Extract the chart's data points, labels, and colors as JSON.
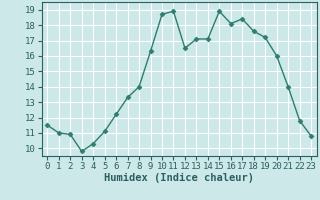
{
  "x": [
    0,
    1,
    2,
    3,
    4,
    5,
    6,
    7,
    8,
    9,
    10,
    11,
    12,
    13,
    14,
    15,
    16,
    17,
    18,
    19,
    20,
    21,
    22,
    23
  ],
  "y": [
    11.5,
    11.0,
    10.9,
    9.8,
    10.3,
    11.1,
    12.2,
    13.3,
    14.0,
    16.3,
    18.7,
    18.9,
    16.5,
    17.1,
    17.1,
    18.9,
    18.1,
    18.4,
    17.6,
    17.2,
    16.0,
    14.0,
    11.8,
    10.8
  ],
  "line_color": "#2e7d6e",
  "marker": "D",
  "marker_size": 2.5,
  "bg_color": "#cce8e8",
  "grid_color": "#ffffff",
  "xlabel": "Humidex (Indice chaleur)",
  "ylim": [
    9.5,
    19.5
  ],
  "xlim": [
    -0.5,
    23.5
  ],
  "yticks": [
    10,
    11,
    12,
    13,
    14,
    15,
    16,
    17,
    18,
    19
  ],
  "xticks": [
    0,
    1,
    2,
    3,
    4,
    5,
    6,
    7,
    8,
    9,
    10,
    11,
    12,
    13,
    14,
    15,
    16,
    17,
    18,
    19,
    20,
    21,
    22,
    23
  ],
  "tick_fontsize": 6.5,
  "xlabel_fontsize": 7.5,
  "line_width": 1.0
}
